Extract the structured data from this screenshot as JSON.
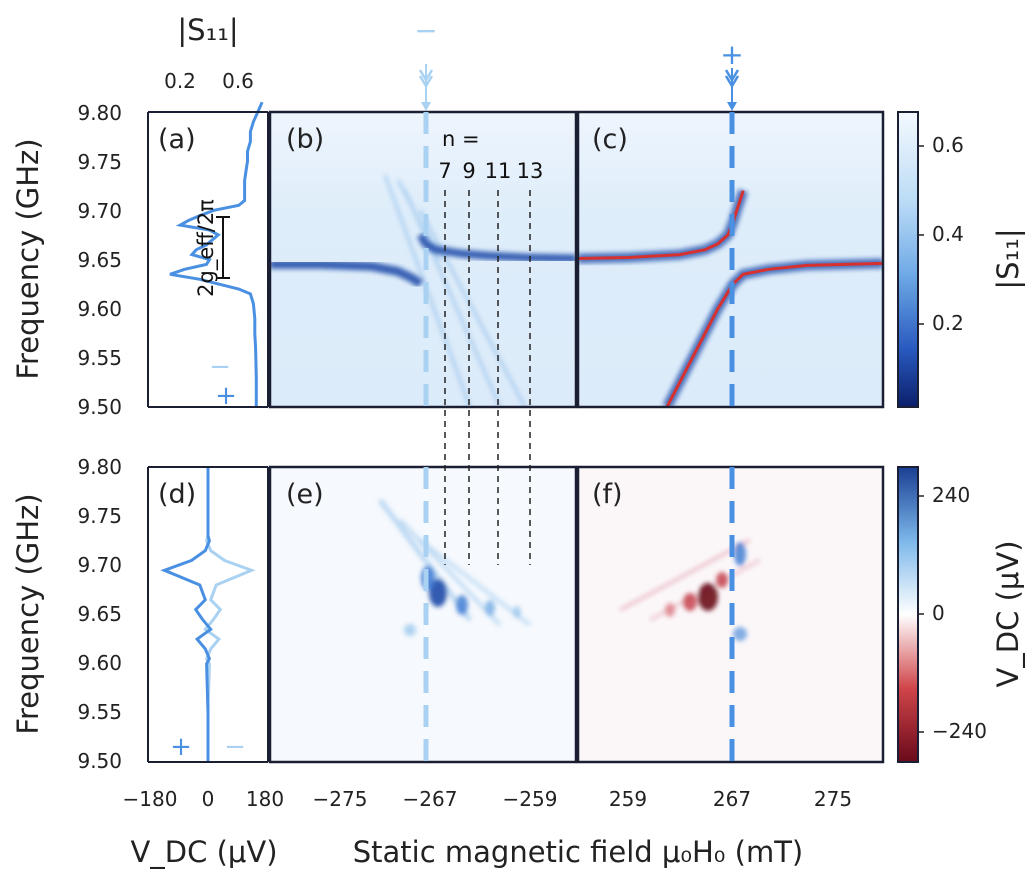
{
  "colors": {
    "light_blue": "#a9d2f2",
    "mid_blue": "#4a90e2",
    "dark_blue": "#1b3f99",
    "red": "#d7312f",
    "dark_red": "#7a0d1e",
    "frame": "#1a1f33"
  },
  "labels": {
    "s11_top": "|S₁₁|",
    "s11_cb": "|S₁₁|",
    "freq": "Frequency (GHz)",
    "vdc_x": "V_DC (μV)",
    "vdc_cb": "V_DC (μV)",
    "field_x": "Static magnetic field μ₀H₀ (mT)",
    "n_label": "n =",
    "geff": "2g_eff/2π",
    "minus": "−",
    "plus": "+"
  },
  "chart_data": [
    {
      "panel": "(a)",
      "type": "line",
      "xlabel": "|S₁₁|",
      "ylabel": "Frequency (GHz)",
      "xticks": [
        "0.2",
        "0.6"
      ],
      "xlim": [
        0.0,
        0.82
      ],
      "yticks": [
        "9.50",
        "9.55",
        "9.60",
        "9.65",
        "9.70",
        "9.75",
        "9.80"
      ],
      "ylim": [
        9.5,
        9.8
      ],
      "series": [
        {
          "x": [
            0.74,
            0.74,
            0.735,
            0.73,
            0.73,
            0.72,
            0.7,
            0.62,
            0.35,
            0.15,
            0.25,
            0.4,
            0.42,
            0.3,
            0.33,
            0.4,
            0.48,
            0.42,
            0.22,
            0.28,
            0.36,
            0.45,
            0.62,
            0.66,
            0.66,
            0.66,
            0.67,
            0.68,
            0.68,
            0.7,
            0.7,
            0.72,
            0.75,
            0.78
          ],
          "y": [
            9.5,
            9.53,
            9.56,
            9.575,
            9.59,
            9.605,
            9.615,
            9.62,
            9.63,
            9.635,
            9.64,
            9.645,
            9.65,
            9.655,
            9.66,
            9.665,
            9.675,
            9.68,
            9.685,
            9.69,
            9.695,
            9.7,
            9.705,
            9.71,
            9.72,
            9.73,
            9.74,
            9.75,
            9.76,
            9.77,
            9.78,
            9.79,
            9.8,
            9.81
          ]
        }
      ],
      "annotations": [
        "2g_eff/2π",
        "−",
        "+"
      ]
    },
    {
      "panel": "(b)",
      "type": "heatmap",
      "xlabel": "Static magnetic field μ₀H₀ (mT)",
      "xticks": [
        "−275",
        "−267",
        "−259"
      ],
      "xlim": [
        -279,
        -255
      ],
      "ylim": [
        9.5,
        9.8
      ],
      "marker_field": -267.2,
      "branches": [
        {
          "x": [
            -279,
            -275,
            -271,
            -269,
            -268,
            -267.5,
            -267.2
          ],
          "y": [
            9.645,
            9.645,
            9.643,
            9.638,
            9.632,
            9.628,
            9.625
          ]
        },
        {
          "x": [
            -267.2,
            -266.8,
            -266,
            -264,
            -262,
            -259,
            -255
          ],
          "y": [
            9.675,
            9.666,
            9.66,
            9.656,
            9.654,
            9.652,
            9.651
          ]
        }
      ],
      "spinwave_modes": [
        "7",
        "9",
        "11",
        "13"
      ],
      "spinwave_fields": [
        -265.6,
        -263.7,
        -261.7,
        -259.7
      ],
      "colorbar": {
        "label": "|S₁₁|",
        "ticks": [
          "0.2",
          "0.4",
          "0.6"
        ],
        "range": [
          0.0,
          0.66
        ]
      }
    },
    {
      "panel": "(c)",
      "type": "heatmap",
      "xticks": [
        "259",
        "267",
        "275"
      ],
      "xlim": [
        255,
        279
      ],
      "ylim": [
        9.5,
        9.8
      ],
      "marker_field": 267.2,
      "fit_series": [
        {
          "x": [
            255,
            259,
            263,
            265,
            266,
            266.8,
            267.2,
            268
          ],
          "y": [
            9.651,
            9.652,
            9.655,
            9.66,
            9.666,
            9.675,
            9.688,
            9.72
          ]
        },
        {
          "x": [
            262,
            264,
            266,
            267.2,
            268,
            270,
            273,
            279
          ],
          "y": [
            9.5,
            9.55,
            9.6,
            9.625,
            9.635,
            9.64,
            9.644,
            9.646
          ]
        }
      ]
    },
    {
      "panel": "(d)",
      "type": "line",
      "xlabel": "V_DC (μV)",
      "ylabel": "Frequency (GHz)",
      "xticks": [
        "−180",
        "0",
        "180"
      ],
      "xlim": [
        -220,
        220
      ],
      "yticks": [
        "9.50",
        "9.55",
        "9.60",
        "9.65",
        "9.70",
        "9.75",
        "9.80"
      ],
      "ylim": [
        9.5,
        9.8
      ],
      "series": [
        {
          "name": "+",
          "x": [
            0,
            0,
            -5,
            5,
            -10,
            -40,
            10,
            -20,
            -45,
            -10,
            -30,
            -160,
            -60,
            -10,
            5,
            0,
            0,
            0
          ],
          "y": [
            9.5,
            9.55,
            9.6,
            9.605,
            9.615,
            9.625,
            9.635,
            9.645,
            9.655,
            9.665,
            9.68,
            9.695,
            9.705,
            9.715,
            9.725,
            9.73,
            9.78,
            9.8
          ]
        },
        {
          "name": "−",
          "x": [
            0,
            0,
            5,
            -5,
            10,
            40,
            -10,
            20,
            45,
            10,
            30,
            160,
            60,
            10,
            -5,
            0,
            0,
            0
          ],
          "y": [
            9.5,
            9.55,
            9.6,
            9.605,
            9.615,
            9.625,
            9.635,
            9.645,
            9.655,
            9.665,
            9.68,
            9.695,
            9.705,
            9.715,
            9.725,
            9.73,
            9.78,
            9.8
          ]
        }
      ],
      "annotations": [
        "+",
        "−"
      ]
    },
    {
      "panel": "(e)",
      "type": "heatmap",
      "xticks": [
        "−275",
        "−267",
        "−259"
      ],
      "xlim": [
        -279,
        -255
      ],
      "ylim": [
        9.5,
        9.8
      ],
      "colorbar": {
        "label": "V_DC (μV)",
        "ticks": [
          "240",
          "0",
          "−240"
        ],
        "range": [
          -300,
          300
        ]
      }
    },
    {
      "panel": "(f)",
      "type": "heatmap",
      "xticks": [
        "259",
        "267",
        "275"
      ],
      "xlim": [
        255,
        279
      ],
      "ylim": [
        9.5,
        9.8
      ]
    }
  ]
}
